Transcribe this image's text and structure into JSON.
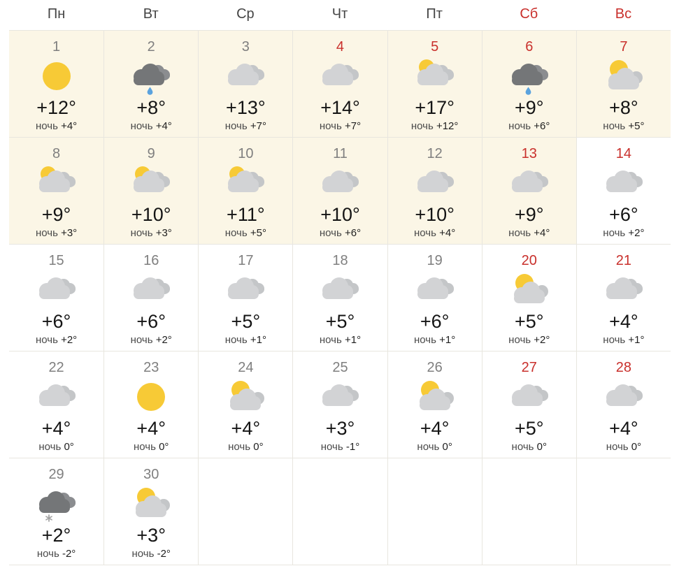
{
  "colors": {
    "weekend_red": "#c9302c",
    "day_number_gray": "#7f7f7f",
    "weekday_header_gray": "#454545",
    "temp_text": "#141414",
    "night_text": "#4a4a4a",
    "highlight_bg": "#fbf6e6",
    "cell_border": "#e8e6df",
    "sun": "#f7ca36",
    "cloud_front": "#d2d3d5",
    "cloud_back": "#c4c6c8",
    "dark_cloud_front": "#747678",
    "dark_cloud_back": "#8b8d90",
    "rain_drop": "#5ba3de",
    "snowflake": "#a3a3a3"
  },
  "calendar": {
    "weekday_headers": [
      {
        "label": "Пн",
        "weekend": false
      },
      {
        "label": "Вт",
        "weekend": false
      },
      {
        "label": "Ср",
        "weekend": false
      },
      {
        "label": "Чт",
        "weekend": false
      },
      {
        "label": "Пт",
        "weekend": false
      },
      {
        "label": "Сб",
        "weekend": true
      },
      {
        "label": "Вс",
        "weekend": true
      }
    ],
    "night_label": "ночь",
    "trailing_empty_cells": 5,
    "days": [
      {
        "day": "1",
        "icon": "sun",
        "temp": "+12°",
        "night_temp": "+4°",
        "red": false,
        "highlighted": true
      },
      {
        "day": "2",
        "icon": "rain-cloud",
        "temp": "+8°",
        "night_temp": "+4°",
        "red": false,
        "highlighted": true
      },
      {
        "day": "3",
        "icon": "cloudy",
        "temp": "+13°",
        "night_temp": "+7°",
        "red": false,
        "highlighted": true
      },
      {
        "day": "4",
        "icon": "cloudy",
        "temp": "+14°",
        "night_temp": "+7°",
        "red": true,
        "highlighted": true
      },
      {
        "day": "5",
        "icon": "sun-behind-clouds",
        "temp": "+17°",
        "night_temp": "+12°",
        "red": true,
        "highlighted": true
      },
      {
        "day": "6",
        "icon": "rain-cloud",
        "temp": "+9°",
        "night_temp": "+6°",
        "red": true,
        "highlighted": true
      },
      {
        "day": "7",
        "icon": "sun-and-cloud",
        "temp": "+8°",
        "night_temp": "+5°",
        "red": true,
        "highlighted": true
      },
      {
        "day": "8",
        "icon": "sun-behind-clouds",
        "temp": "+9°",
        "night_temp": "+3°",
        "red": false,
        "highlighted": true
      },
      {
        "day": "9",
        "icon": "sun-behind-clouds",
        "temp": "+10°",
        "night_temp": "+3°",
        "red": false,
        "highlighted": true
      },
      {
        "day": "10",
        "icon": "sun-behind-clouds",
        "temp": "+11°",
        "night_temp": "+5°",
        "red": false,
        "highlighted": true
      },
      {
        "day": "11",
        "icon": "cloudy",
        "temp": "+10°",
        "night_temp": "+6°",
        "red": false,
        "highlighted": true
      },
      {
        "day": "12",
        "icon": "cloudy",
        "temp": "+10°",
        "night_temp": "+4°",
        "red": false,
        "highlighted": true
      },
      {
        "day": "13",
        "icon": "cloudy",
        "temp": "+9°",
        "night_temp": "+4°",
        "red": true,
        "highlighted": true
      },
      {
        "day": "14",
        "icon": "cloudy",
        "temp": "+6°",
        "night_temp": "+2°",
        "red": true,
        "highlighted": false
      },
      {
        "day": "15",
        "icon": "cloudy",
        "temp": "+6°",
        "night_temp": "+2°",
        "red": false,
        "highlighted": false
      },
      {
        "day": "16",
        "icon": "cloudy",
        "temp": "+6°",
        "night_temp": "+2°",
        "red": false,
        "highlighted": false
      },
      {
        "day": "17",
        "icon": "cloudy",
        "temp": "+5°",
        "night_temp": "+1°",
        "red": false,
        "highlighted": false
      },
      {
        "day": "18",
        "icon": "cloudy",
        "temp": "+5°",
        "night_temp": "+1°",
        "red": false,
        "highlighted": false
      },
      {
        "day": "19",
        "icon": "cloudy",
        "temp": "+6°",
        "night_temp": "+1°",
        "red": false,
        "highlighted": false
      },
      {
        "day": "20",
        "icon": "sun-and-cloud",
        "temp": "+5°",
        "night_temp": "+2°",
        "red": true,
        "highlighted": false
      },
      {
        "day": "21",
        "icon": "cloudy",
        "temp": "+4°",
        "night_temp": "+1°",
        "red": true,
        "highlighted": false
      },
      {
        "day": "22",
        "icon": "cloudy",
        "temp": "+4°",
        "night_temp": "0°",
        "red": false,
        "highlighted": false
      },
      {
        "day": "23",
        "icon": "sun",
        "temp": "+4°",
        "night_temp": "0°",
        "red": false,
        "highlighted": false
      },
      {
        "day": "24",
        "icon": "sun-and-cloud",
        "temp": "+4°",
        "night_temp": "0°",
        "red": false,
        "highlighted": false
      },
      {
        "day": "25",
        "icon": "cloudy",
        "temp": "+3°",
        "night_temp": "-1°",
        "red": false,
        "highlighted": false
      },
      {
        "day": "26",
        "icon": "sun-and-cloud",
        "temp": "+4°",
        "night_temp": "0°",
        "red": false,
        "highlighted": false
      },
      {
        "day": "27",
        "icon": "cloudy",
        "temp": "+5°",
        "night_temp": "0°",
        "red": true,
        "highlighted": false
      },
      {
        "day": "28",
        "icon": "cloudy",
        "temp": "+4°",
        "night_temp": "0°",
        "red": true,
        "highlighted": false
      },
      {
        "day": "29",
        "icon": "snow-cloud",
        "temp": "+2°",
        "night_temp": "-2°",
        "red": false,
        "highlighted": false
      },
      {
        "day": "30",
        "icon": "sun-and-cloud",
        "temp": "+3°",
        "night_temp": "-2°",
        "red": false,
        "highlighted": false
      }
    ]
  }
}
